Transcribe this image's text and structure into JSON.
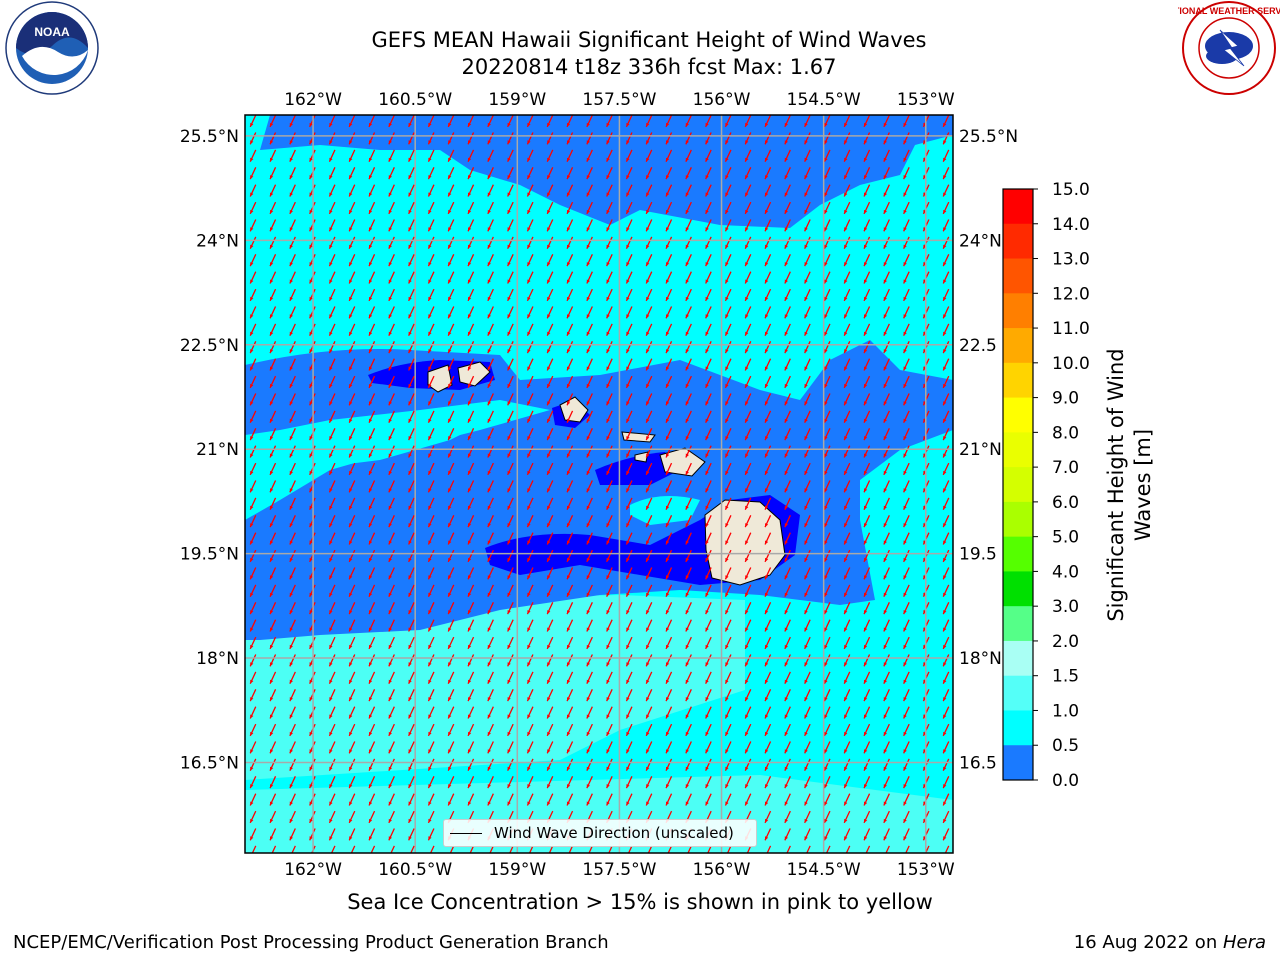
{
  "title": {
    "line1": "GEFS MEAN Hawaii Significant Height of Wind Waves",
    "line2": "20220814 t18z 336h fcst   Max: 1.67"
  },
  "logos": {
    "left": {
      "name": "NOAA",
      "icon": "noaa-logo"
    },
    "right": {
      "name": "NATIONAL WEATHER SERVICE",
      "icon": "nws-logo"
    }
  },
  "map": {
    "lon_ticks": [
      "162°W",
      "160.5°W",
      "159°W",
      "157.5°W",
      "156°W",
      "154.5°W",
      "153°W"
    ],
    "lat_ticks_left": [
      "25.5°N",
      "24°N",
      "22.5°N",
      "21°N",
      "19.5°N",
      "18°N",
      "16.5°N"
    ],
    "lat_ticks_right": [
      "25.5°N",
      "24°N",
      "22.5",
      "21°N",
      "19.5",
      "18°N",
      "16.5"
    ],
    "extent": {
      "lon_min": -163.0,
      "lon_max": -152.6,
      "lat_min": 15.2,
      "lat_max": 25.8
    },
    "grid": true,
    "wind_direction_deg": 245,
    "colors": {
      "deep_blue": "#0000ff",
      "blue": "#1a7aff",
      "cyan": "#00ffff",
      "light_cyan": "#4cfff5",
      "land": "#efe9d8",
      "arrow": "#ff0000"
    }
  },
  "legend": {
    "label": "Wind Wave Direction (unscaled)"
  },
  "colorbar": {
    "title": "Significant Height of Wind Waves [m]",
    "ticks": [
      "15.0",
      "14.0",
      "13.0",
      "12.0",
      "11.0",
      "10.0",
      "9.0",
      "8.0",
      "7.0",
      "6.0",
      "5.0",
      "4.0",
      "3.0",
      "2.0",
      "1.5",
      "1.0",
      "0.5",
      "0.0"
    ],
    "colors": [
      "#ff0000",
      "#ff2a00",
      "#ff5500",
      "#ff7f00",
      "#ffaa00",
      "#ffd400",
      "#ffff00",
      "#eaff00",
      "#d4ff00",
      "#aaff00",
      "#55ff00",
      "#00e000",
      "#55ff88",
      "#a9fff4",
      "#54fff8",
      "#00ffff",
      "#1a7aff",
      "#0000ff"
    ]
  },
  "caption": "Sea Ice Concentration > 15% is shown in pink to yellow",
  "footer": {
    "left": "NCEP/EMC/Verification Post Processing Product Generation Branch",
    "date": "16 Aug 2022 on ",
    "machine": "Hera"
  }
}
